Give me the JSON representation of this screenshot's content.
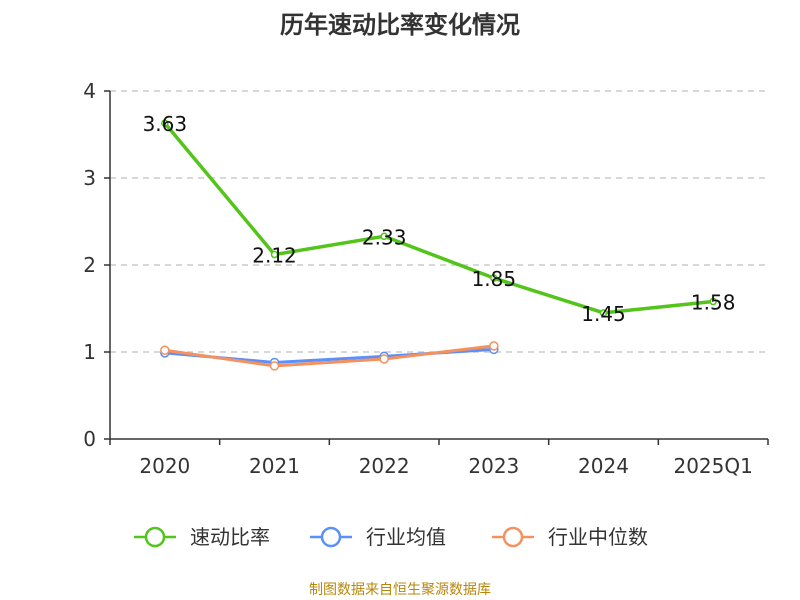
{
  "chart_data": {
    "type": "line",
    "title": "历年速动比率变化情况",
    "categories": [
      "2020",
      "2021",
      "2022",
      "2023",
      "2024",
      "2025Q1"
    ],
    "ylim": [
      0,
      4
    ],
    "yticks": [
      "0",
      "1",
      "2",
      "3",
      "4"
    ],
    "grid": true,
    "legend_position": "bottom",
    "series": [
      {
        "name": "速动比率",
        "color": "#52c41a",
        "values": [
          3.63,
          2.12,
          2.33,
          1.85,
          1.45,
          1.58
        ],
        "labels": [
          "3.63",
          "2.12",
          "2.33",
          "1.85",
          "1.45",
          "1.58"
        ]
      },
      {
        "name": "行业均值",
        "color": "#5b8ff9",
        "values": [
          0.99,
          0.88,
          0.95,
          1.03,
          null,
          null
        ]
      },
      {
        "name": "行业中位数",
        "color": "#f4915e",
        "values": [
          1.02,
          0.84,
          0.92,
          1.07,
          null,
          null
        ]
      }
    ]
  },
  "source": "制图数据来自恒生聚源数据库"
}
